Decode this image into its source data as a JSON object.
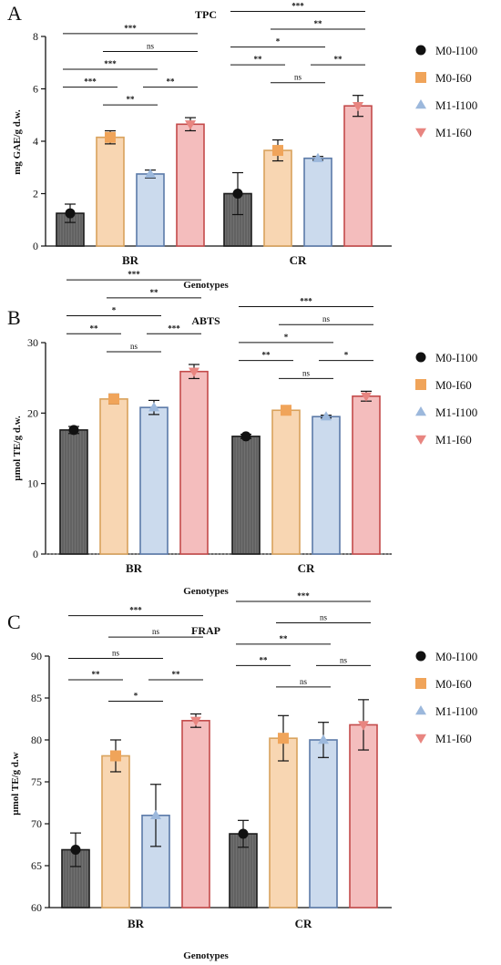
{
  "chart_data": [
    {
      "panel": "A",
      "type": "bar",
      "title": "TPC",
      "xlabel": "Genotypes",
      "ylabel": "mg GAE/g d.w.",
      "ylim": [
        0,
        8
      ],
      "yticks": [
        0,
        2,
        4,
        6,
        8
      ],
      "categories": [
        "BR",
        "CR"
      ],
      "series": [
        {
          "name": "M0-I100",
          "values": [
            1.25,
            2.0
          ],
          "errors": [
            0.35,
            0.8
          ]
        },
        {
          "name": "M0-I60",
          "values": [
            4.15,
            3.65
          ],
          "errors": [
            0.25,
            0.4
          ]
        },
        {
          "name": "M1-I100",
          "values": [
            2.75,
            3.35
          ],
          "errors": [
            0.15,
            0.07
          ]
        },
        {
          "name": "M1-I60",
          "values": [
            4.65,
            5.35
          ],
          "errors": [
            0.25,
            0.4
          ]
        }
      ],
      "significance": [
        {
          "group": "BR",
          "from": 0,
          "to": 1,
          "label": "***"
        },
        {
          "group": "BR",
          "from": 1,
          "to": 2,
          "label": "**"
        },
        {
          "group": "BR",
          "from": 2,
          "to": 3,
          "label": "**"
        },
        {
          "group": "BR",
          "from": 0,
          "to": 2,
          "label": "***"
        },
        {
          "group": "BR",
          "from": 1,
          "to": 3,
          "label": "ns"
        },
        {
          "group": "BR",
          "from": 0,
          "to": 3,
          "label": "***"
        },
        {
          "group": "CR",
          "from": 0,
          "to": 1,
          "label": "**"
        },
        {
          "group": "CR",
          "from": 1,
          "to": 2,
          "label": "ns"
        },
        {
          "group": "CR",
          "from": 2,
          "to": 3,
          "label": "**"
        },
        {
          "group": "CR",
          "from": 0,
          "to": 2,
          "label": "*"
        },
        {
          "group": "CR",
          "from": 1,
          "to": 3,
          "label": "**"
        },
        {
          "group": "CR",
          "from": 0,
          "to": 3,
          "label": "***"
        }
      ]
    },
    {
      "panel": "B",
      "type": "bar",
      "title": "ABTS",
      "xlabel": "Genotypes",
      "ylabel": "µmol TE/g d.w.",
      "ylim": [
        0,
        30
      ],
      "yticks": [
        0,
        10,
        20,
        30
      ],
      "categories": [
        "BR",
        "CR"
      ],
      "series": [
        {
          "name": "M0-I100",
          "values": [
            17.6,
            16.7
          ],
          "errors": [
            0.5,
            0.3
          ]
        },
        {
          "name": "M0-I60",
          "values": [
            22.0,
            20.4
          ],
          "errors": [
            0.7,
            0.5
          ]
        },
        {
          "name": "M1-I100",
          "values": [
            20.8,
            19.5
          ],
          "errors": [
            1.0,
            0.2
          ]
        },
        {
          "name": "M1-I60",
          "values": [
            25.9,
            22.4
          ],
          "errors": [
            1.0,
            0.7
          ]
        }
      ],
      "significance": [
        {
          "group": "BR",
          "from": 0,
          "to": 1,
          "label": "**"
        },
        {
          "group": "BR",
          "from": 1,
          "to": 2,
          "label": "ns"
        },
        {
          "group": "BR",
          "from": 2,
          "to": 3,
          "label": "***"
        },
        {
          "group": "BR",
          "from": 0,
          "to": 2,
          "label": "*"
        },
        {
          "group": "BR",
          "from": 1,
          "to": 3,
          "label": "**"
        },
        {
          "group": "BR",
          "from": 0,
          "to": 3,
          "label": "***"
        },
        {
          "group": "CR",
          "from": 0,
          "to": 1,
          "label": "**"
        },
        {
          "group": "CR",
          "from": 1,
          "to": 2,
          "label": "ns"
        },
        {
          "group": "CR",
          "from": 2,
          "to": 3,
          "label": "*"
        },
        {
          "group": "CR",
          "from": 0,
          "to": 2,
          "label": "*"
        },
        {
          "group": "CR",
          "from": 1,
          "to": 3,
          "label": "ns"
        },
        {
          "group": "CR",
          "from": 0,
          "to": 3,
          "label": "***"
        }
      ]
    },
    {
      "panel": "C",
      "type": "bar",
      "title": "FRAP",
      "xlabel": "Genotypes",
      "ylabel": "µmol TE/g d.w",
      "ylim": [
        60,
        90
      ],
      "yticks": [
        60,
        65,
        70,
        75,
        80,
        85,
        90
      ],
      "categories": [
        "BR",
        "CR"
      ],
      "series": [
        {
          "name": "M0-I100",
          "values": [
            66.9,
            68.8
          ],
          "errors": [
            2.0,
            1.6
          ]
        },
        {
          "name": "M0-I60",
          "values": [
            78.1,
            80.2
          ],
          "errors": [
            1.9,
            2.7
          ]
        },
        {
          "name": "M1-I100",
          "values": [
            71.0,
            80.0
          ],
          "errors": [
            3.7,
            2.1
          ]
        },
        {
          "name": "M1-I60",
          "values": [
            82.3,
            81.8
          ],
          "errors": [
            0.8,
            3.0
          ]
        }
      ],
      "significance": [
        {
          "group": "BR",
          "from": 0,
          "to": 1,
          "label": "**"
        },
        {
          "group": "BR",
          "from": 1,
          "to": 2,
          "label": "*"
        },
        {
          "group": "BR",
          "from": 2,
          "to": 3,
          "label": "**"
        },
        {
          "group": "BR",
          "from": 0,
          "to": 2,
          "label": "ns"
        },
        {
          "group": "BR",
          "from": 1,
          "to": 3,
          "label": "ns"
        },
        {
          "group": "BR",
          "from": 0,
          "to": 3,
          "label": "***"
        },
        {
          "group": "CR",
          "from": 0,
          "to": 1,
          "label": "**"
        },
        {
          "group": "CR",
          "from": 1,
          "to": 2,
          "label": "ns"
        },
        {
          "group": "CR",
          "from": 2,
          "to": 3,
          "label": "ns"
        },
        {
          "group": "CR",
          "from": 0,
          "to": 2,
          "label": "**"
        },
        {
          "group": "CR",
          "from": 1,
          "to": 3,
          "label": "ns"
        },
        {
          "group": "CR",
          "from": 0,
          "to": 3,
          "label": "***"
        }
      ]
    }
  ],
  "style": {
    "series_fill": [
      "#707070",
      "#f8d6b2",
      "#cbdaed",
      "#f4bdbd"
    ],
    "series_stroke": [
      "#1a1a1a",
      "#d9a25c",
      "#5b7aa8",
      "#c34a4a"
    ],
    "marker_color": [
      "#111111",
      "#f0a45a",
      "#9cb8dc",
      "#e88580"
    ],
    "marker_shape": [
      "circle",
      "square",
      "triangle-up",
      "triangle-down"
    ],
    "legend_position": "right"
  }
}
